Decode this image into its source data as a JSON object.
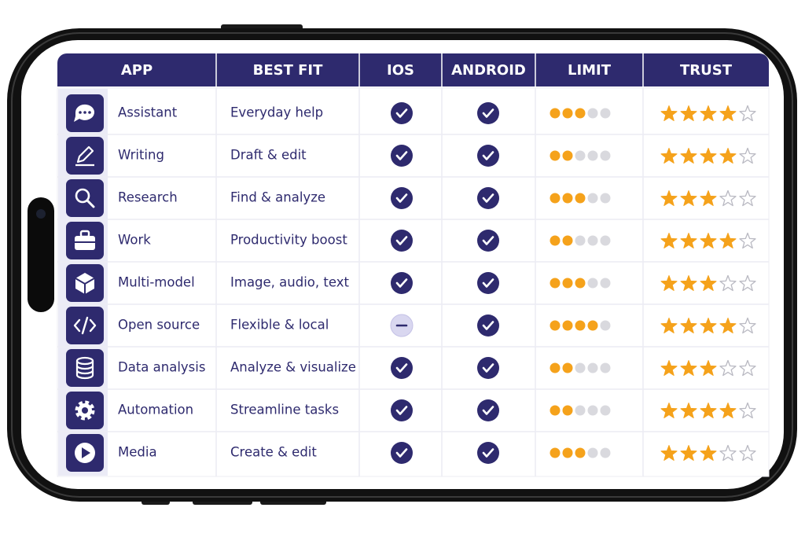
{
  "table": {
    "headers": [
      "APP",
      "BEST FIT",
      "IOS",
      "ANDROID",
      "LIMIT",
      "TRUST"
    ],
    "limit_max": 5,
    "trust_max": 5,
    "rows": [
      {
        "app": "Assistant",
        "best_fit": "Everyday help",
        "ios": true,
        "android": true,
        "limit": 3,
        "trust": 4
      },
      {
        "app": "Writing",
        "best_fit": "Draft & edit",
        "ios": true,
        "android": true,
        "limit": 2,
        "trust": 4
      },
      {
        "app": "Research",
        "best_fit": "Find & analyze",
        "ios": true,
        "android": true,
        "limit": 3,
        "trust": 3
      },
      {
        "app": "Work",
        "best_fit": "Productivity boost",
        "ios": true,
        "android": true,
        "limit": 2,
        "trust": 4
      },
      {
        "app": "Multi-model",
        "best_fit": "Image, audio, text",
        "ios": true,
        "android": true,
        "limit": 3,
        "trust": 3
      },
      {
        "app": "Open source",
        "best_fit": "Flexible & local",
        "ios": false,
        "android": true,
        "limit": 4,
        "trust": 4
      },
      {
        "app": "Data analysis",
        "best_fit": "Analyze & visualize",
        "ios": true,
        "android": true,
        "limit": 2,
        "trust": 3
      },
      {
        "app": "Automation",
        "best_fit": "Streamline tasks",
        "ios": true,
        "android": true,
        "limit": 2,
        "trust": 4
      },
      {
        "app": "Media",
        "best_fit": "Create & edit",
        "ios": true,
        "android": true,
        "limit": 3,
        "trust": 3
      }
    ]
  }
}
